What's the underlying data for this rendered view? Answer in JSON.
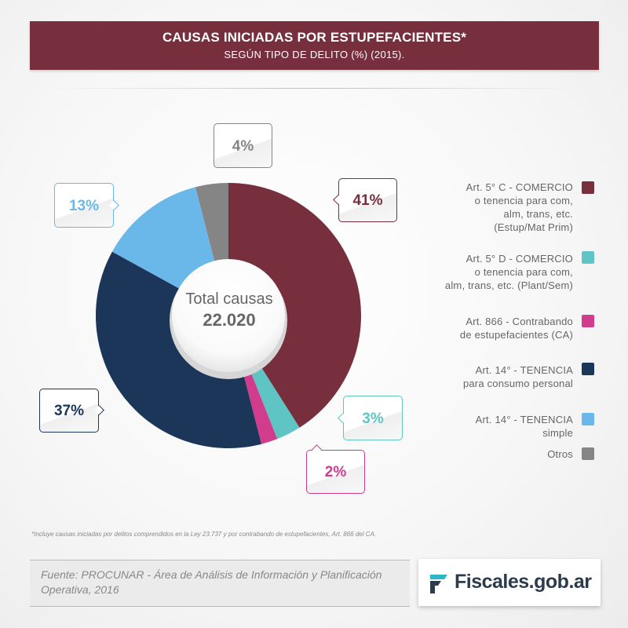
{
  "header": {
    "title": "CAUSAS INICIADAS POR ESTUPEFACIENTES*",
    "subtitle": "SEGÚN TIPO DE DELITO (%) (2015)."
  },
  "chart_data": {
    "type": "pie",
    "title": "CAUSAS INICIADAS POR ESTUPEFACIENTES*",
    "subtitle": "SEGÚN TIPO DE DELITO (%) (2015).",
    "center_label": "Total causas",
    "center_value": "22.020",
    "slices": [
      {
        "label": "Art. 5° C - COMERCIO o tenencia para com, alm, trans, etc. (Estup/Mat Prim)",
        "value": 41,
        "display": "41%",
        "color": "#772f3d"
      },
      {
        "label": "Art. 5° D - COMERCIO o tenencia para com, alm, trans, etc. (Plant/Sem)",
        "value": 3,
        "display": "3%",
        "color": "#5fc4c4"
      },
      {
        "label": "Art. 866 - Contrabando de estupefacientes (CA)",
        "value": 2,
        "display": "2%",
        "color": "#d23c8c"
      },
      {
        "label": "Art. 14° - TENENCIA para consumo personal",
        "value": 37,
        "display": "37%",
        "color": "#1b3658"
      },
      {
        "label": "Art. 14° - TENENCIA simple",
        "value": 13,
        "display": "13%",
        "color": "#6ab8ea"
      },
      {
        "label": "Otros",
        "value": 4,
        "display": "4%",
        "color": "#858585"
      }
    ],
    "legend_position": "right"
  },
  "legend": [
    {
      "lines": [
        "Art. 5° C - COMERCIO",
        "o tenencia para com,",
        "alm, trans, etc.",
        "(Estup/Mat Prim)"
      ],
      "color": "#772f3d"
    },
    {
      "lines": [
        "Art. 5° D - COMERCIO",
        "o tenencia para com,",
        "alm, trans, etc. (Plant/Sem)"
      ],
      "color": "#5fc4c4"
    },
    {
      "lines": [
        "Art. 866 - Contrabando",
        "de estupefacientes (CA)"
      ],
      "color": "#d23c8c"
    },
    {
      "lines": [
        "Art. 14° - TENENCIA",
        "para consumo personal"
      ],
      "color": "#1b3658"
    },
    {
      "lines": [
        "Art. 14° - TENENCIA",
        "simple"
      ],
      "color": "#6ab8ea"
    },
    {
      "lines": [
        "Otros"
      ],
      "color": "#858585"
    }
  ],
  "footnote": "*Incluye causas iniciadas por delitos comprendidos en la Ley 23.737 y por contrabando de estupefacientes, Art. 866 del CA.",
  "source": "Fuente: PROCUNAR - Área de Análisis de Información y Planificación Operativa, 2016",
  "logo": {
    "text": "Fiscales.gob.ar",
    "icon": "fiscales-logo-icon",
    "color": "#2c3b4c",
    "accent": "#2cb6c8"
  }
}
